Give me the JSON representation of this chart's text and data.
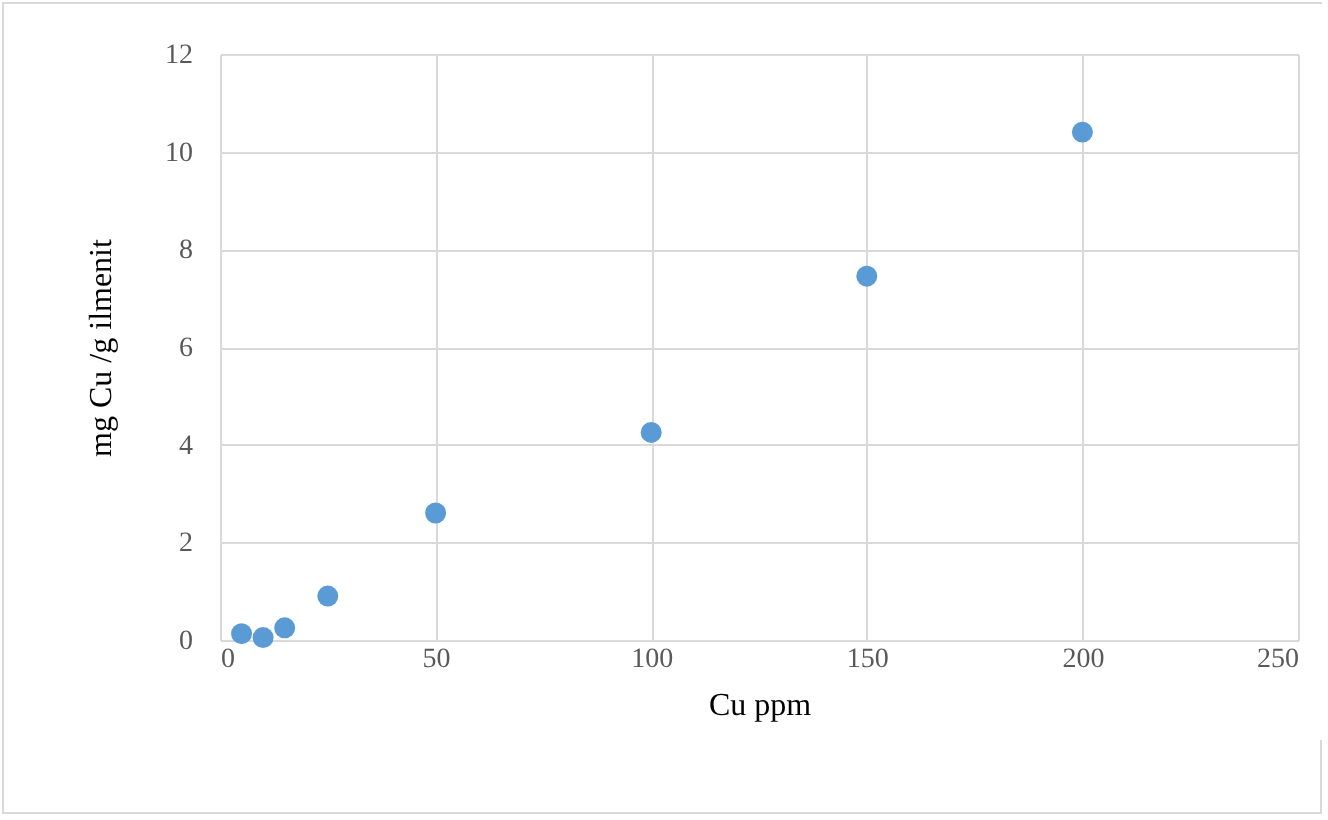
{
  "chart_data": {
    "type": "scatter",
    "xlabel": "Cu ppm",
    "ylabel": "mg Cu /g ilmenit",
    "x": [
      5,
      10,
      15,
      25,
      50,
      100,
      150,
      200
    ],
    "series": [
      {
        "color": "#5b9bd5",
        "values": [
          0.13,
          0.05,
          0.25,
          0.9,
          2.6,
          4.25,
          7.45,
          10.4
        ]
      }
    ],
    "xlim": [
      0,
      250
    ],
    "xticks": [
      0,
      50,
      100,
      150,
      200,
      250
    ],
    "ylim": [
      0,
      12
    ],
    "yticks": [
      0,
      2,
      4,
      6,
      8,
      10,
      12
    ],
    "grid": true,
    "marker": "circle"
  }
}
